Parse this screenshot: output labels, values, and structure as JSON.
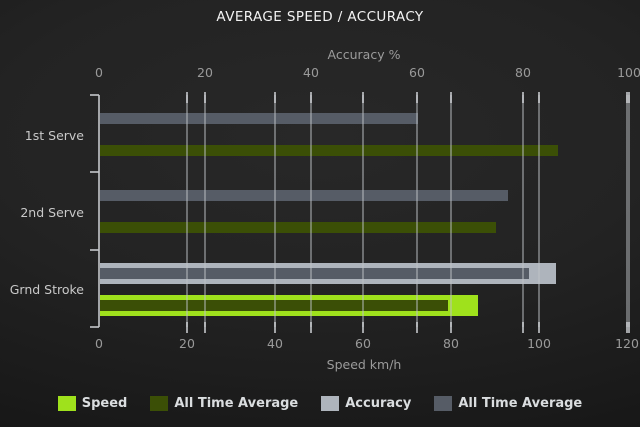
{
  "title": "AVERAGE SPEED / ACCURACY",
  "chart_data": {
    "type": "bar",
    "orientation": "horizontal",
    "grid": true,
    "legend_position": "bottom",
    "categories": [
      "1st Serve",
      "2nd Serve",
      "Grnd Stroke"
    ],
    "axes": {
      "top": {
        "label": "Accuracy %",
        "min": 0,
        "max": 100,
        "ticks": [
          0,
          20,
          40,
          60,
          80,
          100
        ]
      },
      "bottom": {
        "label": "Speed km/h",
        "min": 0,
        "max": 120,
        "ticks": [
          0,
          20,
          40,
          60,
          80,
          100,
          120
        ]
      }
    },
    "series": [
      {
        "name": "Speed",
        "axis": "bottom",
        "role": "current",
        "color": "#9fe11c",
        "values": [
          null,
          null,
          86
        ]
      },
      {
        "name": "All Time Average",
        "axis": "bottom",
        "role": "average",
        "color": "#3b4f06",
        "values": [
          104,
          90,
          79
        ]
      },
      {
        "name": "Accuracy",
        "axis": "top",
        "role": "current",
        "color": "#aeb4bc",
        "values": [
          null,
          null,
          86
        ]
      },
      {
        "name": "All Time Average",
        "axis": "top",
        "role": "average",
        "color": "#565c66",
        "values": [
          60,
          77,
          81
        ]
      }
    ],
    "legend": [
      {
        "label": "Speed",
        "color": "#9fe11c"
      },
      {
        "label": "All Time Average",
        "color": "#3b4f06"
      },
      {
        "label": "Accuracy",
        "color": "#aeb4bc"
      },
      {
        "label": "All Time Average",
        "color": "#565c66"
      }
    ]
  }
}
